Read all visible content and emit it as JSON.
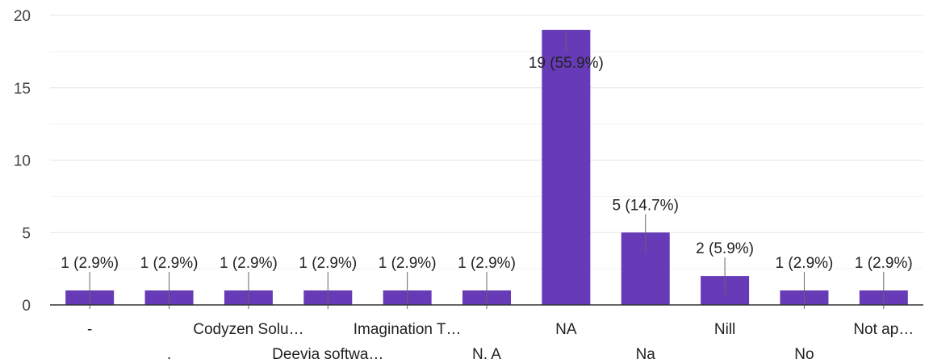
{
  "chart_data": {
    "type": "bar",
    "categories": [
      "-",
      ".",
      "Codyzen Solu…",
      "Deevia softwa…",
      "Imagination T…",
      "N. A",
      "NA",
      "Na",
      "Nill",
      "No",
      "Not ap…"
    ],
    "values": [
      1,
      1,
      1,
      1,
      1,
      1,
      19,
      5,
      2,
      1,
      1
    ],
    "data_labels": [
      "1 (2.9%)",
      "1 (2.9%)",
      "1 (2.9%)",
      "1 (2.9%)",
      "1 (2.9%)",
      "1 (2.9%)",
      "19 (55.9%)",
      "5 (14.7%)",
      "2 (5.9%)",
      "1 (2.9%)",
      "1 (2.9%)"
    ],
    "y_ticks": [
      "0",
      "5",
      "10",
      "15",
      "20"
    ],
    "ylim": [
      0,
      20
    ],
    "grid": true,
    "colors": {
      "bar": "#673ab7",
      "grid": "#e6e6e6",
      "minor_grid": "#f2f2f2",
      "axis": "#333333",
      "leader": "#666666"
    }
  }
}
